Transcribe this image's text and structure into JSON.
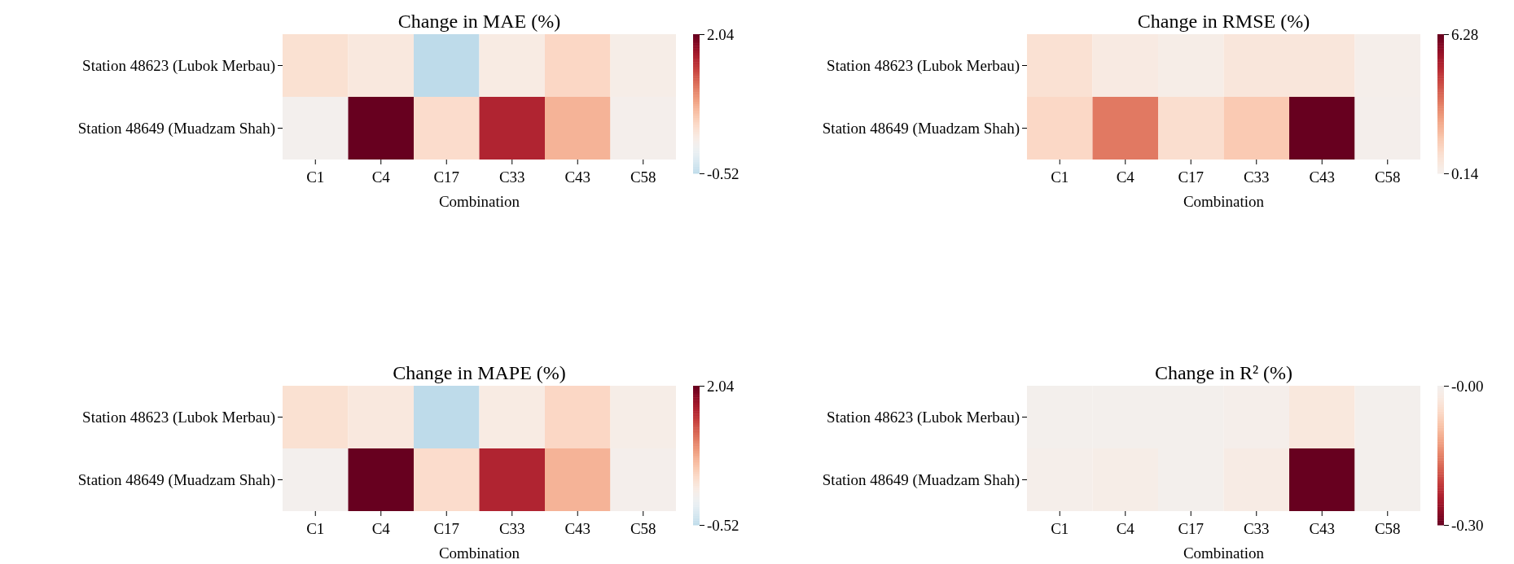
{
  "chart_data": [
    {
      "type": "heatmap",
      "title": "Change in MAE (%)",
      "xlabel": "Combination",
      "categories": [
        "C1",
        "C4",
        "C17",
        "C33",
        "C43",
        "C58"
      ],
      "y_categories": [
        "Station 48623 (Lubok Merbau)",
        "Station 48649 (Muadzam Shah)"
      ],
      "cells": [
        [
          0.3,
          0.2,
          -0.52,
          0.15,
          0.4,
          0.1
        ],
        [
          0.02,
          2.04,
          0.35,
          1.6,
          0.7,
          0.05
        ]
      ],
      "clim": [
        -0.52,
        2.04
      ],
      "cticks": [
        -0.52,
        2.04
      ]
    },
    {
      "type": "heatmap",
      "title": "Change in RMSE (%)",
      "xlabel": "Combination",
      "categories": [
        "C1",
        "C4",
        "C17",
        "C33",
        "C43",
        "C58"
      ],
      "y_categories": [
        "Station 48623 (Lubok Merbau)",
        "Station 48649 (Muadzam Shah)"
      ],
      "cells": [
        [
          0.9,
          0.5,
          0.3,
          0.7,
          0.7,
          0.2
        ],
        [
          1.2,
          3.3,
          1.0,
          1.6,
          6.28,
          0.14
        ]
      ],
      "clim": [
        0.14,
        6.28
      ],
      "cticks": [
        0.14,
        6.28
      ]
    },
    {
      "type": "heatmap",
      "title": "Change in MAPE (%)",
      "xlabel": "Combination",
      "categories": [
        "C1",
        "C4",
        "C17",
        "C33",
        "C43",
        "C58"
      ],
      "y_categories": [
        "Station 48623 (Lubok Merbau)",
        "Station 48649 (Muadzam Shah)"
      ],
      "cells": [
        [
          0.3,
          0.2,
          -0.52,
          0.15,
          0.4,
          0.1
        ],
        [
          0.02,
          2.04,
          0.35,
          1.6,
          0.7,
          0.05
        ]
      ],
      "clim": [
        -0.52,
        2.04
      ],
      "cticks": [
        -0.52,
        2.04
      ]
    },
    {
      "type": "heatmap",
      "title": "Change in R² (%)",
      "xlabel": "Combination",
      "categories": [
        "C1",
        "C4",
        "C17",
        "C33",
        "C43",
        "C58"
      ],
      "y_categories": [
        "Station 48623 (Lubok Merbau)",
        "Station 48649 (Muadzam Shah)"
      ],
      "cells": [
        [
          -0.005,
          -0.005,
          -0.005,
          -0.01,
          -0.03,
          -0.005
        ],
        [
          -0.01,
          -0.015,
          -0.005,
          -0.02,
          -0.3,
          -0.005
        ]
      ],
      "clim": [
        -0.3,
        0
      ],
      "cticks": [
        {
          "value": -0.3,
          "label": "-0.30"
        },
        {
          "value": 0,
          "label": "-0.00"
        }
      ]
    }
  ]
}
